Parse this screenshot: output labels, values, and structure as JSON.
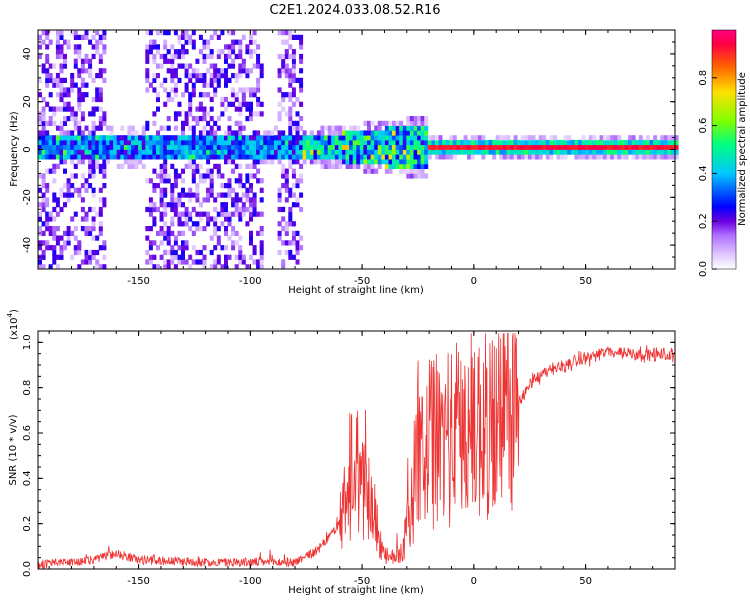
{
  "title": "C2E1.2024.033.08.52.R16",
  "chart_data": [
    {
      "type": "heatmap",
      "xlabel": "Height of straight line (km)",
      "ylabel": "Frequency (Hz)",
      "xlim": [
        -195,
        90
      ],
      "ylim": [
        -50,
        50
      ],
      "xticks": [
        -150,
        -100,
        -50,
        0,
        50
      ],
      "yticks": [
        -40,
        -20,
        0,
        20,
        40
      ],
      "xtick_labels": [
        "-150",
        "-100",
        "-50",
        "0",
        "50"
      ],
      "ytick_labels": [
        "-40",
        "-20",
        "0",
        "20",
        "40"
      ],
      "colorbar": {
        "label": "Normalized spectral amplitude",
        "range": [
          0.0,
          1.0
        ],
        "ticks": [
          0.0,
          0.2,
          0.4,
          0.6,
          0.8
        ],
        "tick_labels": [
          "0.0",
          "0.2",
          "0.4",
          "0.6",
          "0.8"
        ],
        "colormap": [
          "#ffffff",
          "#e0c8ff",
          "#b070ff",
          "#6a00e0",
          "#0000ff",
          "#00c8ff",
          "#00ff80",
          "#80ff00",
          "#ffe000",
          "#ff6000",
          "#ff0080",
          "#ff0060"
        ]
      },
      "description_regions": {
        "noise_bands_km": [
          [
            -195,
            -165
          ],
          [
            -148,
            -95
          ],
          [
            -88,
            -78
          ]
        ],
        "signal_center_hz": 0,
        "strong_line_start_km": -22
      }
    },
    {
      "type": "line",
      "xlabel": "Height of straight line (km)",
      "ylabel": "SNR (10 * v/v)",
      "yexponent_label": "(x10",
      "yexponent_power": "4",
      "yexponent_close": ")",
      "xlim": [
        -195,
        90
      ],
      "ylim": [
        0.0,
        1.05
      ],
      "xticks": [
        -150,
        -100,
        -50,
        0,
        50
      ],
      "yticks": [
        0.0,
        0.2,
        0.4,
        0.6,
        0.8,
        1.0
      ],
      "xtick_labels": [
        "-150",
        "-100",
        "-50",
        "0",
        "50"
      ],
      "ytick_labels": [
        "0.0",
        "0.2",
        "0.4",
        "0.6",
        "0.8",
        "1.0"
      ],
      "line_color": "#ee3333",
      "envelope_points": [
        {
          "x": -195,
          "y": 0.02
        },
        {
          "x": -170,
          "y": 0.04
        },
        {
          "x": -160,
          "y": 0.07
        },
        {
          "x": -150,
          "y": 0.04
        },
        {
          "x": -120,
          "y": 0.03
        },
        {
          "x": -100,
          "y": 0.03
        },
        {
          "x": -80,
          "y": 0.03
        },
        {
          "x": -70,
          "y": 0.08
        },
        {
          "x": -60,
          "y": 0.2
        },
        {
          "x": -52,
          "y": 0.4
        },
        {
          "x": -47,
          "y": 0.35
        },
        {
          "x": -42,
          "y": 0.12
        },
        {
          "x": -38,
          "y": 0.04
        },
        {
          "x": -32,
          "y": 0.08
        },
        {
          "x": -28,
          "y": 0.3
        },
        {
          "x": -25,
          "y": 0.5
        },
        {
          "x": -20,
          "y": 0.55
        },
        {
          "x": -12,
          "y": 0.58
        },
        {
          "x": -5,
          "y": 0.62
        },
        {
          "x": 0,
          "y": 0.63
        },
        {
          "x": 10,
          "y": 0.66
        },
        {
          "x": 18,
          "y": 0.7
        },
        {
          "x": 25,
          "y": 0.82
        },
        {
          "x": 35,
          "y": 0.88
        },
        {
          "x": 50,
          "y": 0.93
        },
        {
          "x": 60,
          "y": 0.96
        },
        {
          "x": 75,
          "y": 0.95
        },
        {
          "x": 90,
          "y": 0.94
        }
      ]
    }
  ]
}
